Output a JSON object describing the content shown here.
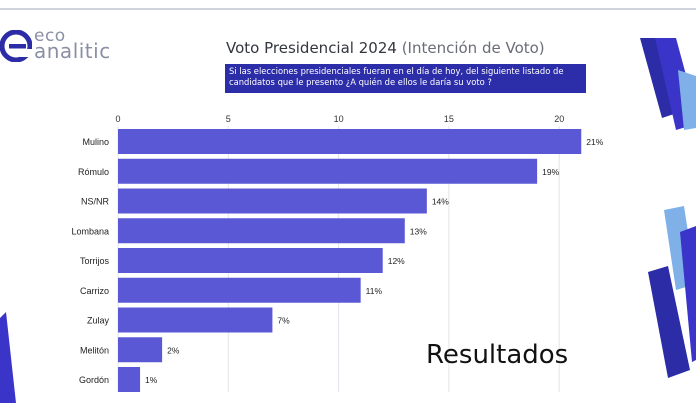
{
  "logo": {
    "line1": "eco",
    "line2": "analitic"
  },
  "header": {
    "title_main": "Voto Presidencial 2024",
    "title_sub": "(Intención de Voto)",
    "question": "Si las elecciones presidenciales fueran en el día de hoy, del siguiente listado de candidatos que le presento ¿A quién de ellos le daría su voto ?"
  },
  "footer_label": "Resultados",
  "colors": {
    "bar": "#5b58d6",
    "question_bg": "#2c2da8",
    "accent_dark": "#2b2ca6",
    "accent_light": "#7fb1e8"
  },
  "chart_data": {
    "type": "bar",
    "orientation": "horizontal",
    "title": "Voto Presidencial 2024 (Intención de Voto)",
    "categories": [
      "Mulino",
      "Rómulo",
      "NS/NR",
      "Lombana",
      "Torrijos",
      "Carrizo",
      "Zulay",
      "Melitón",
      "Gordón"
    ],
    "values": [
      21,
      19,
      14,
      13,
      12,
      11,
      7,
      2,
      1
    ],
    "data_labels": [
      "21%",
      "19%",
      "14%",
      "13%",
      "12%",
      "11%",
      "7%",
      "2%",
      "1%"
    ],
    "xlim": [
      0,
      21
    ],
    "xticks": [
      0,
      5,
      10,
      15,
      20
    ],
    "xtick_labels": [
      "0",
      "5",
      "10",
      "15",
      "20"
    ],
    "xaxis_position": "top",
    "grid": true,
    "legend": "none"
  }
}
